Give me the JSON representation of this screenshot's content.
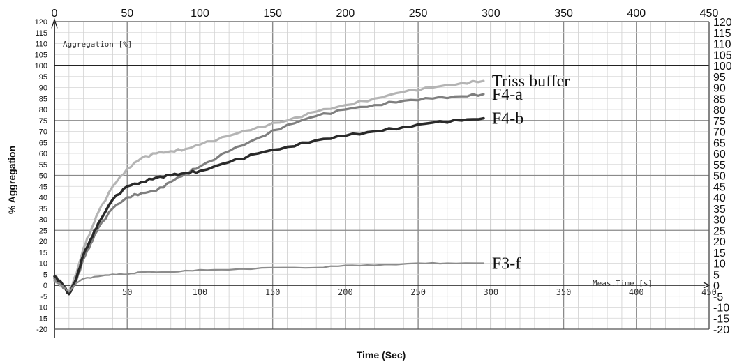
{
  "chart_data": {
    "type": "line",
    "xlabel": "Time (Sec)",
    "ylabel": "% Aggregation",
    "inner_ylabel": "Aggregation [%]",
    "inner_xlabel": "Meas.Time [s]",
    "xlim": [
      0,
      450
    ],
    "ylim": [
      -20,
      120
    ],
    "top_x_ticks": [
      "0",
      "50",
      "100",
      "150",
      "200",
      "250",
      "300",
      "350",
      "400",
      "450"
    ],
    "inner_x_ticks": [
      "50",
      "100",
      "150",
      "200",
      "250",
      "300",
      "350",
      "400",
      "450"
    ],
    "left_y_ticks": [
      "120",
      "115",
      "110",
      "105",
      "100",
      "95",
      "90",
      "85",
      "80",
      "75",
      "70",
      "65",
      "60",
      "55",
      "50",
      "45",
      "40",
      "35",
      "30",
      "25",
      "20",
      "15",
      "10",
      "5",
      "0",
      "-5",
      "-10",
      "-15",
      "-20"
    ],
    "right_y_ticks": [
      "120",
      "115",
      "110",
      "105",
      "100",
      "95",
      "90",
      "85",
      "80",
      "75",
      "70",
      "65",
      "60",
      "55",
      "50",
      "45",
      "40",
      "35",
      "30",
      "25",
      "20",
      "15",
      "10",
      "5",
      "0",
      "-5",
      "-10",
      "-15",
      "-20"
    ],
    "grid": true,
    "series": [
      {
        "name": "Triss buffer",
        "color": "#b4b4b4",
        "x": [
          0,
          5,
          10,
          15,
          20,
          25,
          30,
          40,
          50,
          60,
          70,
          80,
          90,
          100,
          120,
          140,
          160,
          180,
          200,
          220,
          240,
          260,
          280,
          295
        ],
        "y": [
          2,
          0,
          -3,
          5,
          17,
          25,
          33,
          45,
          53,
          58,
          60,
          61,
          62,
          64,
          68,
          72,
          75,
          79,
          82,
          85,
          88,
          90,
          92,
          93
        ]
      },
      {
        "name": "F4-a",
        "color": "#7f7f7f",
        "x": [
          0,
          5,
          10,
          15,
          20,
          25,
          30,
          40,
          50,
          60,
          70,
          80,
          90,
          100,
          120,
          140,
          160,
          180,
          200,
          220,
          240,
          260,
          280,
          295
        ],
        "y": [
          3,
          0,
          -4,
          2,
          12,
          19,
          26,
          35,
          40,
          42,
          43,
          47,
          51,
          54,
          61,
          67,
          73,
          77,
          80,
          82,
          84,
          85,
          86,
          87
        ]
      },
      {
        "name": "F4-b",
        "color": "#2a2a2a",
        "x": [
          0,
          5,
          10,
          15,
          20,
          25,
          30,
          40,
          50,
          60,
          70,
          80,
          90,
          100,
          120,
          140,
          160,
          180,
          200,
          220,
          240,
          260,
          280,
          295
        ],
        "y": [
          4,
          1,
          -4,
          3,
          14,
          21,
          28,
          39,
          45,
          47,
          49,
          50,
          51,
          52,
          56,
          60,
          63,
          66,
          68,
          70,
          72,
          74,
          75,
          76
        ]
      },
      {
        "name": "F3-f",
        "color": "#8c8c8c",
        "x": [
          0,
          5,
          10,
          15,
          20,
          30,
          40,
          50,
          60,
          80,
          100,
          120,
          150,
          180,
          200,
          220,
          250,
          270,
          295
        ],
        "y": [
          2,
          0,
          -3,
          1,
          3,
          4,
          5,
          5,
          6,
          6,
          7,
          7,
          8,
          8,
          9,
          9,
          10,
          10,
          10
        ]
      }
    ]
  }
}
